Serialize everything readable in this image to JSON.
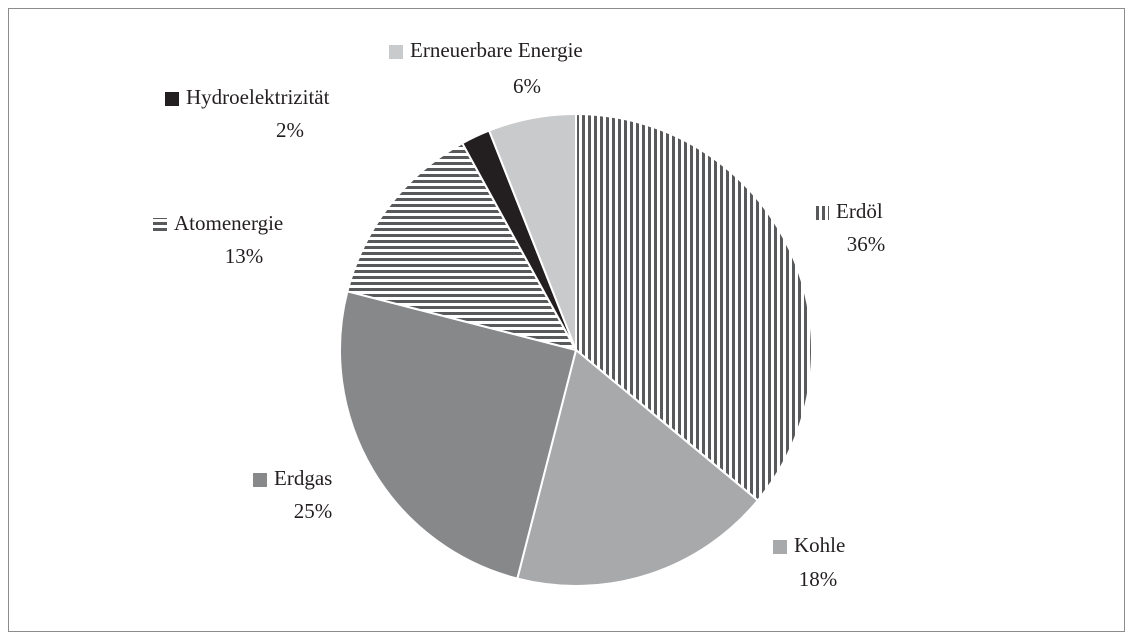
{
  "chart_data": {
    "type": "pie",
    "categories": [
      "Erdöl",
      "Kohle",
      "Erdgas",
      "Atomenergie",
      "Hydroelektrizität",
      "Erneuerbare Energie"
    ],
    "values": [
      36,
      18,
      25,
      13,
      2,
      6
    ],
    "value_labels": [
      "36%",
      "18%",
      "25%",
      "13%",
      "2%",
      "6%"
    ],
    "colors": [
      "#58595b",
      "#a8a9ab",
      "#87888a",
      "#58595b",
      "#231f20",
      "#c9cacb"
    ],
    "patterns": [
      "vertical-stripes",
      "solid",
      "solid",
      "horizontal-stripes",
      "solid",
      "solid"
    ]
  }
}
